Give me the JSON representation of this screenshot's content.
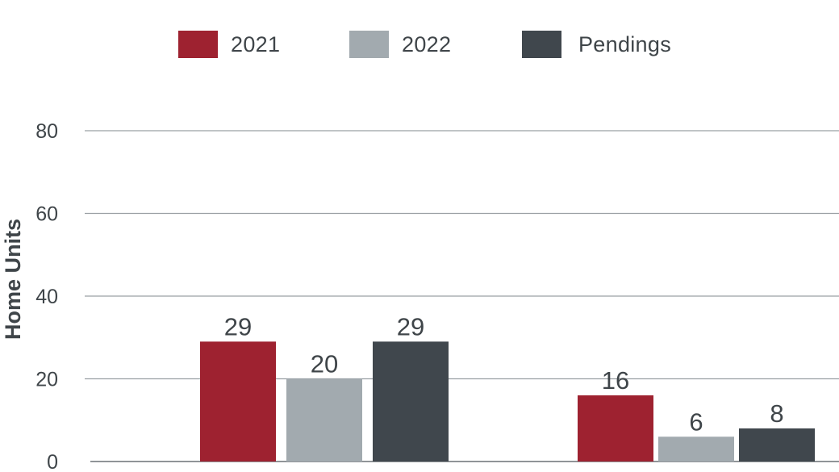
{
  "chart_data": {
    "type": "bar",
    "title": "",
    "xlabel": "",
    "ylabel": "Home Units",
    "categories": [
      "",
      ""
    ],
    "series": [
      {
        "name": "2021",
        "color": "#9e2230",
        "values": [
          29,
          16
        ]
      },
      {
        "name": "2022",
        "color": "#a2aaaf",
        "values": [
          20,
          6
        ]
      },
      {
        "name": "Pendings",
        "color": "#40474d",
        "values": [
          29,
          8
        ]
      }
    ],
    "yticks": [
      0,
      20,
      40,
      60,
      80
    ],
    "ylim": [
      0,
      80
    ],
    "grid": true,
    "legend": "top-center",
    "data_labels": true
  }
}
